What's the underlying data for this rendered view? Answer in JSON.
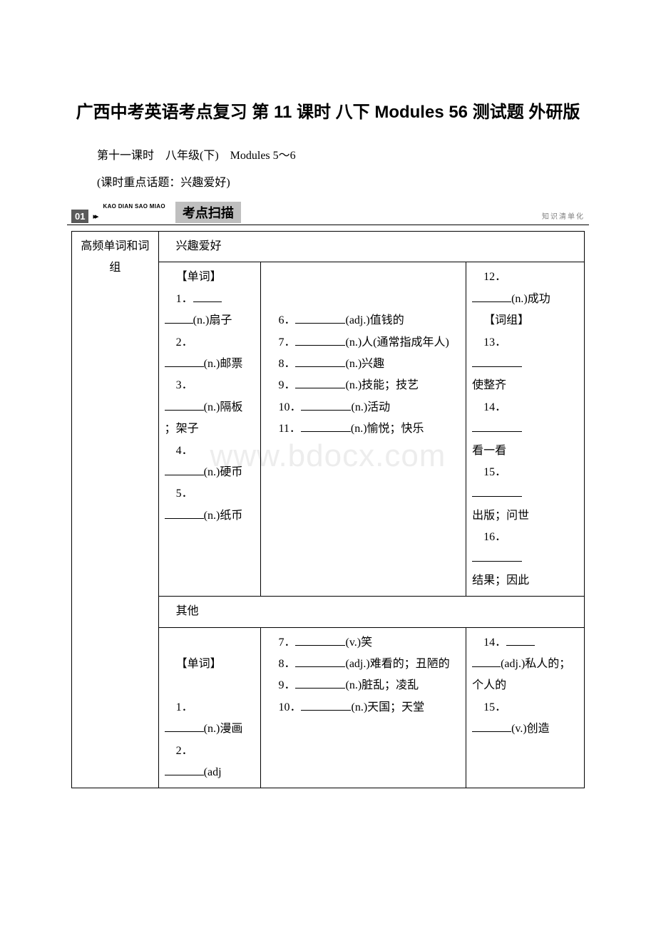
{
  "title": "广西中考英语考点复习 第 11 课时 八下 Modules 56 测试题 外研版",
  "subtitle": "第十一课时　八年级(下)　Modules 5～6",
  "topic_note": "(课时重点话题：兴趣爱好)",
  "banner": {
    "num": "01",
    "arrows": "▸▸",
    "pinyin": "KAO DIAN SAO MIAO",
    "label": "考点扫描",
    "right": "知识清单化"
  },
  "watermark": "www.bdocx.com",
  "row_label": "高频单词和词组",
  "sec1_header": "兴趣爱好",
  "sec1": {
    "colA": {
      "l1": "【单词】",
      "l2a": "1．",
      "l2b": "(n.)扇子",
      "l3a": "2．",
      "l3b": "(n.)邮票",
      "l4a": "3．",
      "l4b": "(n.)隔板",
      "l4c": "；架子",
      "l5a": "4．",
      "l5b": "(n.)硬币",
      "l6a": "5．",
      "l6b": "(n.)纸币"
    },
    "colB": {
      "l1a": "6．",
      "l1b": "(adj.)值钱的",
      "l2a": "7．",
      "l2b": "(n.)人(通常指成年人)",
      "l3a": "8．",
      "l3b": "(n.)兴趣",
      "l4a": "9．",
      "l4b": "(n.)技能；技艺",
      "l5a": "10．",
      "l5b": "(n.)活动",
      "l6a": "11．",
      "l6b": "(n.)愉悦；快乐"
    },
    "colC": {
      "l1a": "12．",
      "l1b": "(n.)成功",
      "l2": "【词组】",
      "l3a": "13．",
      "l3b": "使整齐",
      "l4a": "14．",
      "l4b": "看一看",
      "l5a": "15．",
      "l5b": "出版；问世",
      "l6a": "16．",
      "l6b": "结果；因此"
    }
  },
  "sec2_header": "其他",
  "sec2": {
    "colA": {
      "l1": "【单词】",
      "l2a": "1．",
      "l2b": "(n.)漫画",
      "l3a": "2．",
      "l3b": "(adj"
    },
    "colB": {
      "l1a": "7．",
      "l1b": "(v.)笑",
      "l2a": "8．",
      "l2b": "(adj.)难看的；丑陋的",
      "l3a": "9．",
      "l3b": "(n.)脏乱；凌乱",
      "l4a": "10．",
      "l4b": "(n.)天国；天堂"
    },
    "colC": {
      "l1a": "14．",
      "l1b": "(adj.)私人的；个人的",
      "l2a": "15．",
      "l2b": "(v.)创造"
    }
  }
}
